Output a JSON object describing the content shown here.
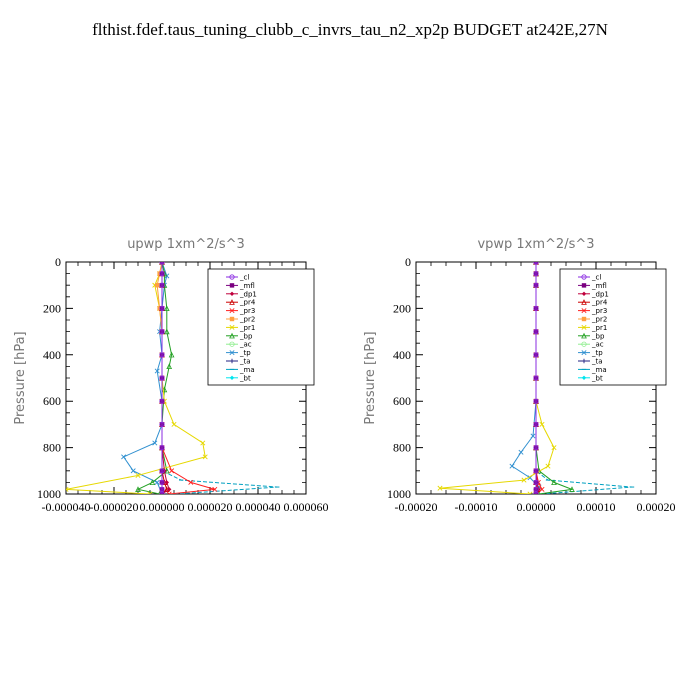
{
  "title": "flthist.fdef.taus_tuning_clubb_c_invrs_tau_n2_xp2p  BUDGET at242E,27N",
  "chart_data": [
    {
      "type": "line",
      "title": "upwp   1xm^2/s^3",
      "xlabel": "",
      "ylabel": "Pressure [hPa]",
      "xlim": [
        -4e-05,
        6e-05
      ],
      "ylim": [
        1000,
        0
      ],
      "xticks": [
        -4e-05,
        -2e-05,
        0.0,
        2e-05,
        4e-05,
        6e-05
      ],
      "xtick_labels": [
        "-0.000040",
        "-0.000020",
        "0.000000",
        "0.000020",
        "0.000040",
        "0.000060"
      ],
      "yticks": [
        0,
        200,
        400,
        600,
        800,
        1000
      ],
      "ytick_labels": [
        "0",
        "200",
        "400",
        "600",
        "800",
        "1000"
      ],
      "legend_position": "top-right",
      "series": [
        {
          "name": "_cl",
          "color": "#8a2be2",
          "x": [
            0,
            0,
            0,
            0,
            0,
            0,
            0,
            0,
            0,
            0,
            0,
            0,
            0,
            0
          ],
          "y": [
            0,
            50,
            100,
            200,
            300,
            400,
            500,
            600,
            700,
            800,
            900,
            950,
            980,
            1000
          ]
        },
        {
          "name": "_mfl",
          "color": "#7a0080",
          "x": [
            0,
            0,
            0,
            0,
            0,
            0,
            0,
            0,
            0,
            0,
            0,
            0,
            0,
            0
          ],
          "y": [
            0,
            50,
            100,
            200,
            300,
            400,
            500,
            600,
            700,
            800,
            900,
            950,
            980,
            1000
          ]
        },
        {
          "name": "_dp1",
          "color": "#c0003c",
          "x": [
            0,
            0,
            0,
            0,
            0,
            0,
            0,
            0,
            0,
            0,
            1e-06,
            2e-06,
            3e-06,
            0
          ],
          "y": [
            0,
            50,
            100,
            200,
            300,
            400,
            500,
            600,
            700,
            800,
            900,
            950,
            980,
            1000
          ]
        },
        {
          "name": "_pr4",
          "color": "#cc0000",
          "x": [
            0,
            0,
            0,
            0,
            0,
            0,
            0,
            0,
            0,
            0,
            0,
            1e-06,
            2e-06,
            0
          ],
          "y": [
            0,
            50,
            100,
            200,
            300,
            400,
            500,
            600,
            700,
            800,
            900,
            950,
            980,
            1000
          ]
        },
        {
          "name": "_pr3",
          "color": "#ff2020",
          "x": [
            0,
            0,
            0,
            0,
            0,
            0,
            0,
            0,
            0,
            0,
            4e-06,
            1.2e-05,
            2.2e-05,
            3e-06
          ],
          "y": [
            0,
            50,
            100,
            200,
            300,
            400,
            500,
            600,
            700,
            800,
            900,
            950,
            980,
            1000
          ]
        },
        {
          "name": "_pr2",
          "color": "#ffa040",
          "x": [
            0,
            -1e-06,
            -2e-06,
            -1e-06,
            0,
            0,
            0,
            0,
            0,
            0,
            0,
            0,
            0,
            0
          ],
          "y": [
            0,
            50,
            100,
            200,
            300,
            400,
            500,
            600,
            700,
            800,
            900,
            950,
            980,
            1000
          ]
        },
        {
          "name": "_pr1",
          "color": "#e6d800",
          "x": [
            0,
            -1e-06,
            -3e-06,
            -1e-06,
            0,
            0,
            0,
            1e-06,
            5e-06,
            1.7e-05,
            1.8e-05,
            -1e-05,
            -4e-05,
            -5e-06
          ],
          "y": [
            0,
            50,
            100,
            200,
            300,
            400,
            500,
            600,
            700,
            780,
            840,
            920,
            980,
            1000
          ]
        },
        {
          "name": "_bp",
          "color": "#22a022",
          "x": [
            0,
            1e-06,
            1e-06,
            2e-06,
            2e-06,
            4e-06,
            3e-06,
            1e-06,
            0,
            0,
            2e-06,
            -4e-06,
            -1e-05,
            -1e-06
          ],
          "y": [
            0,
            50,
            100,
            200,
            300,
            400,
            450,
            550,
            700,
            800,
            900,
            950,
            980,
            1000
          ]
        },
        {
          "name": "_ac",
          "color": "#90ee90",
          "x": [
            0,
            0,
            0,
            0,
            0,
            0,
            0,
            0,
            0,
            0,
            0,
            0,
            0,
            0
          ],
          "y": [
            0,
            50,
            100,
            200,
            300,
            400,
            500,
            600,
            700,
            800,
            900,
            950,
            980,
            1000
          ]
        },
        {
          "name": "_tp",
          "color": "#3090d0",
          "x": [
            0,
            2e-06,
            1e-06,
            0,
            -1e-06,
            0,
            -2e-06,
            0,
            0,
            -3e-06,
            -1.6e-05,
            -1.2e-05,
            -2e-06,
            0
          ],
          "y": [
            0,
            60,
            100,
            200,
            300,
            400,
            470,
            600,
            700,
            780,
            840,
            900,
            950,
            1000
          ]
        },
        {
          "name": "_ta",
          "color": "#202080",
          "x": [
            0,
            0,
            0,
            0,
            0,
            0,
            0,
            0,
            0,
            0,
            0,
            0,
            0,
            0
          ],
          "y": [
            0,
            50,
            100,
            200,
            300,
            400,
            500,
            600,
            700,
            800,
            900,
            950,
            980,
            1000
          ]
        },
        {
          "name": "_ma",
          "color": "#00a0c0",
          "x": [
            0,
            0,
            0,
            0,
            0,
            0,
            0,
            0,
            0,
            0,
            0,
            8e-06,
            4.8e-05,
            6e-06
          ],
          "y": [
            0,
            50,
            100,
            200,
            300,
            400,
            500,
            600,
            700,
            800,
            900,
            940,
            970,
            1000
          ]
        },
        {
          "name": "_bt",
          "color": "#00e5ee",
          "x": [
            0,
            0,
            0,
            0,
            0,
            0,
            0,
            0,
            0,
            0,
            0,
            0,
            0,
            0
          ],
          "y": [
            0,
            50,
            100,
            200,
            300,
            400,
            500,
            600,
            700,
            800,
            900,
            950,
            980,
            1000
          ]
        }
      ]
    },
    {
      "type": "line",
      "title": "vpwp   1xm^2/s^3",
      "xlabel": "",
      "ylabel": "Pressure [hPa]",
      "xlim": [
        -0.0002,
        0.0002
      ],
      "ylim": [
        1000,
        0
      ],
      "xticks": [
        -0.0002,
        -0.0001,
        0.0,
        0.0001,
        0.0002
      ],
      "xtick_labels": [
        "-0.00020",
        "-0.00010",
        "0.00000",
        "0.00010",
        "0.00020"
      ],
      "yticks": [
        0,
        200,
        400,
        600,
        800,
        1000
      ],
      "ytick_labels": [
        "0",
        "200",
        "400",
        "600",
        "800",
        "1000"
      ],
      "legend_position": "top-right",
      "series": [
        {
          "name": "_cl",
          "color": "#8a2be2",
          "x": [
            0,
            0,
            0,
            0,
            0,
            0,
            0,
            0,
            0,
            0,
            0,
            0,
            0,
            0
          ],
          "y": [
            0,
            50,
            100,
            200,
            300,
            400,
            500,
            600,
            700,
            800,
            900,
            950,
            980,
            1000
          ]
        },
        {
          "name": "_mfl",
          "color": "#7a0080",
          "x": [
            0,
            0,
            0,
            0,
            0,
            0,
            0,
            0,
            0,
            0,
            0,
            0,
            0,
            0
          ],
          "y": [
            0,
            50,
            100,
            200,
            300,
            400,
            500,
            600,
            700,
            800,
            900,
            950,
            980,
            1000
          ]
        },
        {
          "name": "_dp1",
          "color": "#c0003c",
          "x": [
            0,
            0,
            0,
            0,
            0,
            0,
            0,
            0,
            0,
            0,
            0,
            2e-06,
            4e-06,
            0
          ],
          "y": [
            0,
            50,
            100,
            200,
            300,
            400,
            500,
            600,
            700,
            800,
            900,
            950,
            980,
            1000
          ]
        },
        {
          "name": "_pr4",
          "color": "#cc0000",
          "x": [
            0,
            0,
            0,
            0,
            0,
            0,
            0,
            0,
            0,
            0,
            0,
            0,
            2e-06,
            0
          ],
          "y": [
            0,
            50,
            100,
            200,
            300,
            400,
            500,
            600,
            700,
            800,
            900,
            950,
            980,
            1000
          ]
        },
        {
          "name": "_pr3",
          "color": "#ff2020",
          "x": [
            0,
            0,
            0,
            0,
            0,
            0,
            0,
            0,
            0,
            0,
            0,
            4e-06,
            1e-05,
            0
          ],
          "y": [
            0,
            50,
            100,
            200,
            300,
            400,
            500,
            600,
            700,
            800,
            900,
            950,
            980,
            1000
          ]
        },
        {
          "name": "_pr2",
          "color": "#ffa040",
          "x": [
            0,
            0,
            0,
            0,
            0,
            0,
            0,
            0,
            0,
            0,
            0,
            0,
            0,
            0
          ],
          "y": [
            0,
            50,
            100,
            200,
            300,
            400,
            500,
            600,
            700,
            800,
            900,
            950,
            980,
            1000
          ]
        },
        {
          "name": "_pr1",
          "color": "#e6d800",
          "x": [
            0,
            0,
            0,
            0,
            0,
            0,
            0,
            0,
            1e-05,
            3e-05,
            2e-05,
            -2e-05,
            -0.00016,
            -1e-05
          ],
          "y": [
            0,
            50,
            100,
            200,
            300,
            400,
            500,
            600,
            700,
            800,
            880,
            940,
            975,
            1000
          ]
        },
        {
          "name": "_bp",
          "color": "#22a022",
          "x": [
            0,
            0,
            0,
            0,
            0,
            0,
            0,
            0,
            0,
            0,
            5e-06,
            3e-05,
            6e-05,
            5e-06
          ],
          "y": [
            0,
            50,
            100,
            200,
            300,
            400,
            500,
            600,
            700,
            800,
            900,
            950,
            980,
            1000
          ]
        },
        {
          "name": "_ac",
          "color": "#90ee90",
          "x": [
            0,
            0,
            0,
            0,
            0,
            0,
            0,
            0,
            0,
            0,
            0,
            0,
            0,
            0
          ],
          "y": [
            0,
            50,
            100,
            200,
            300,
            400,
            500,
            600,
            700,
            800,
            900,
            950,
            980,
            1000
          ]
        },
        {
          "name": "_tp",
          "color": "#3090d0",
          "x": [
            0,
            0,
            0,
            0,
            0,
            0,
            0,
            0,
            -5e-06,
            -2.5e-05,
            -4e-05,
            -1e-05,
            5e-06,
            0
          ],
          "y": [
            0,
            50,
            100,
            200,
            300,
            400,
            500,
            600,
            750,
            820,
            880,
            930,
            970,
            1000
          ]
        },
        {
          "name": "_ta",
          "color": "#202080",
          "x": [
            0,
            0,
            0,
            0,
            0,
            0,
            0,
            0,
            0,
            0,
            0,
            0,
            0,
            0
          ],
          "y": [
            0,
            50,
            100,
            200,
            300,
            400,
            500,
            600,
            700,
            800,
            900,
            950,
            980,
            1000
          ]
        },
        {
          "name": "_ma",
          "color": "#00a0c0",
          "x": [
            0,
            0,
            0,
            0,
            0,
            0,
            0,
            0,
            0,
            0,
            0,
            2e-05,
            0.00016,
            1e-05
          ],
          "y": [
            0,
            50,
            100,
            200,
            300,
            400,
            500,
            600,
            700,
            800,
            900,
            940,
            970,
            1000
          ]
        },
        {
          "name": "_bt",
          "color": "#00e5ee",
          "x": [
            0,
            0,
            0,
            0,
            0,
            0,
            0,
            0,
            0,
            0,
            0,
            0,
            0,
            0
          ],
          "y": [
            0,
            50,
            100,
            200,
            300,
            400,
            500,
            600,
            700,
            800,
            900,
            950,
            980,
            1000
          ]
        }
      ]
    }
  ]
}
